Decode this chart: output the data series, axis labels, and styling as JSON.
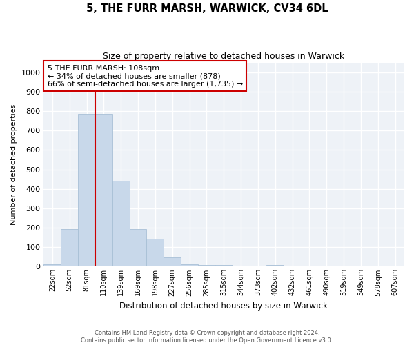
{
  "title": "5, THE FURR MARSH, WARWICK, CV34 6DL",
  "subtitle": "Size of property relative to detached houses in Warwick",
  "xlabel": "Distribution of detached houses by size in Warwick",
  "ylabel": "Number of detached properties",
  "bin_labels": [
    "22sqm",
    "52sqm",
    "81sqm",
    "110sqm",
    "139sqm",
    "169sqm",
    "198sqm",
    "227sqm",
    "256sqm",
    "285sqm",
    "315sqm",
    "344sqm",
    "373sqm",
    "402sqm",
    "432sqm",
    "461sqm",
    "490sqm",
    "519sqm",
    "549sqm",
    "578sqm",
    "607sqm"
  ],
  "bar_values": [
    12,
    193,
    785,
    785,
    443,
    193,
    143,
    48,
    12,
    10,
    8,
    0,
    0,
    8,
    0,
    0,
    0,
    0,
    0,
    0,
    0
  ],
  "bar_color": "#c8d8ea",
  "bar_edgecolor": "#a8c0d6",
  "property_line_x": 2.5,
  "property_line_color": "#cc0000",
  "annotation_text": "5 THE FURR MARSH: 108sqm\n← 34% of detached houses are smaller (878)\n66% of semi-detached houses are larger (1,735) →",
  "annotation_box_color": "#cc0000",
  "ylim": [
    0,
    1050
  ],
  "yticks": [
    0,
    100,
    200,
    300,
    400,
    500,
    600,
    700,
    800,
    900,
    1000
  ],
  "background_color": "#eef2f7",
  "grid_color": "#ffffff",
  "footer_line1": "Contains HM Land Registry data © Crown copyright and database right 2024.",
  "footer_line2": "Contains public sector information licensed under the Open Government Licence v3.0."
}
